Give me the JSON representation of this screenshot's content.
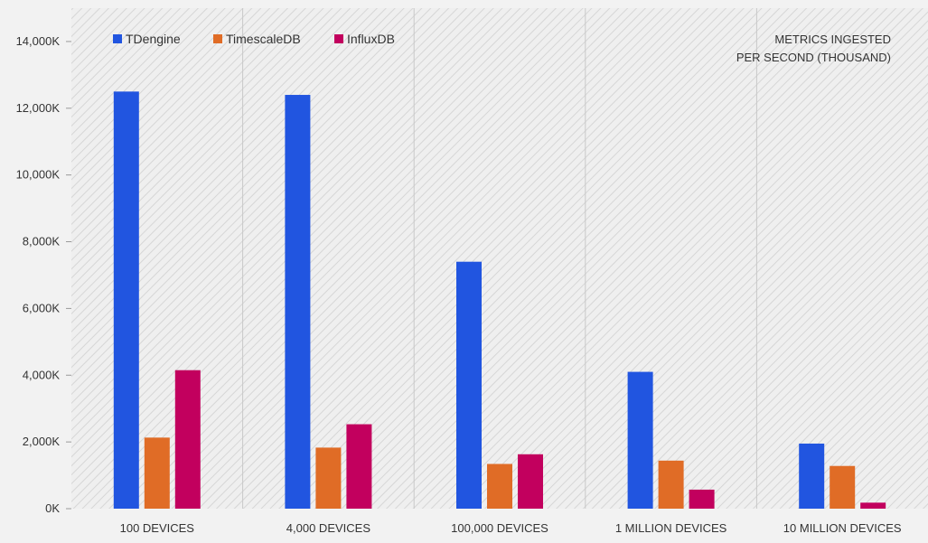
{
  "chart_data": {
    "type": "bar",
    "title": "",
    "note": [
      "METRICS INGESTED",
      "PER SECOND (THOUSAND)"
    ],
    "categories": [
      "100 DEVICES",
      "4,000 DEVICES",
      "100,000 DEVICES",
      "1 MILLION DEVICES",
      "10 MILLION DEVICES"
    ],
    "series": [
      {
        "name": "TDengine",
        "color": "#2155e0",
        "values": [
          12500,
          12400,
          7400,
          4100,
          1950
        ]
      },
      {
        "name": "TimescaleDB",
        "color": "#e06c26",
        "values": [
          2130,
          1830,
          1340,
          1440,
          1280
        ]
      },
      {
        "name": "InfluxDB",
        "color": "#c2005e",
        "values": [
          4150,
          2530,
          1630,
          570,
          180
        ]
      }
    ],
    "ylim": [
      0,
      15000
    ],
    "yticks": [
      0,
      2000,
      4000,
      6000,
      8000,
      10000,
      12000,
      14000
    ],
    "ytick_labels": [
      "0K",
      "2,000K",
      "4,000K",
      "6,000K",
      "8,000K",
      "10,000K",
      "12,000K",
      "14,000K"
    ],
    "xlabel": "",
    "ylabel": "",
    "legend_position": "top-left",
    "grid": false
  }
}
